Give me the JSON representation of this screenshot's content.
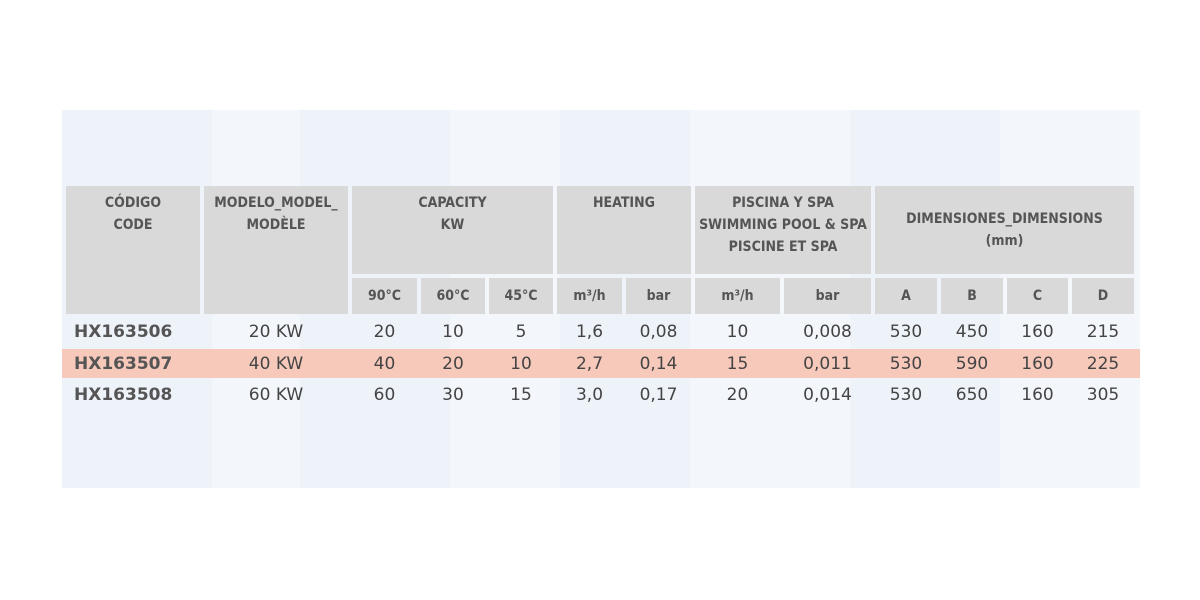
{
  "headers": {
    "code": [
      "CÓDIGO",
      "CODE"
    ],
    "model": [
      "MODELO_MODEL_",
      "MODÈLE"
    ],
    "capacity": [
      "CAPACITY",
      "KW"
    ],
    "heating": [
      "HEATING"
    ],
    "pool": [
      "PISCINA Y SPA",
      "SWIMMING POOL & SPA",
      "PISCINE ET SPA"
    ],
    "dimensions": [
      "DIMENSIONES_DIMENSIONS",
      "(mm)"
    ]
  },
  "subheaders": [
    "90°C",
    "60°C",
    "45°C",
    "m³/h",
    "bar",
    "m³/h",
    "bar",
    "A",
    "B",
    "C",
    "D"
  ],
  "rows": [
    {
      "code": "HX163506",
      "model": "20 KW",
      "cap90": "20",
      "cap60": "10",
      "cap45": "5",
      "heat_m3h": "1,6",
      "heat_bar": "0,08",
      "pool_m3h": "10",
      "pool_bar": "0,008",
      "A": "530",
      "B": "450",
      "C": "160",
      "D": "215"
    },
    {
      "code": "HX163507",
      "model": "40 KW",
      "cap90": "40",
      "cap60": "20",
      "cap45": "10",
      "heat_m3h": "2,7",
      "heat_bar": "0,14",
      "pool_m3h": "15",
      "pool_bar": "0,011",
      "A": "530",
      "B": "590",
      "C": "160",
      "D": "225"
    },
    {
      "code": "HX163508",
      "model": "60 KW",
      "cap90": "60",
      "cap60": "30",
      "cap45": "15",
      "heat_m3h": "3,0",
      "heat_bar": "0,17",
      "pool_m3h": "20",
      "pool_bar": "0,014",
      "A": "530",
      "B": "650",
      "C": "160",
      "D": "305"
    }
  ],
  "highlight_row": 1,
  "colors": {
    "header_bg": "#d9d9d9",
    "highlight": "#f7c9bb",
    "watermark": "#eef2f9"
  }
}
